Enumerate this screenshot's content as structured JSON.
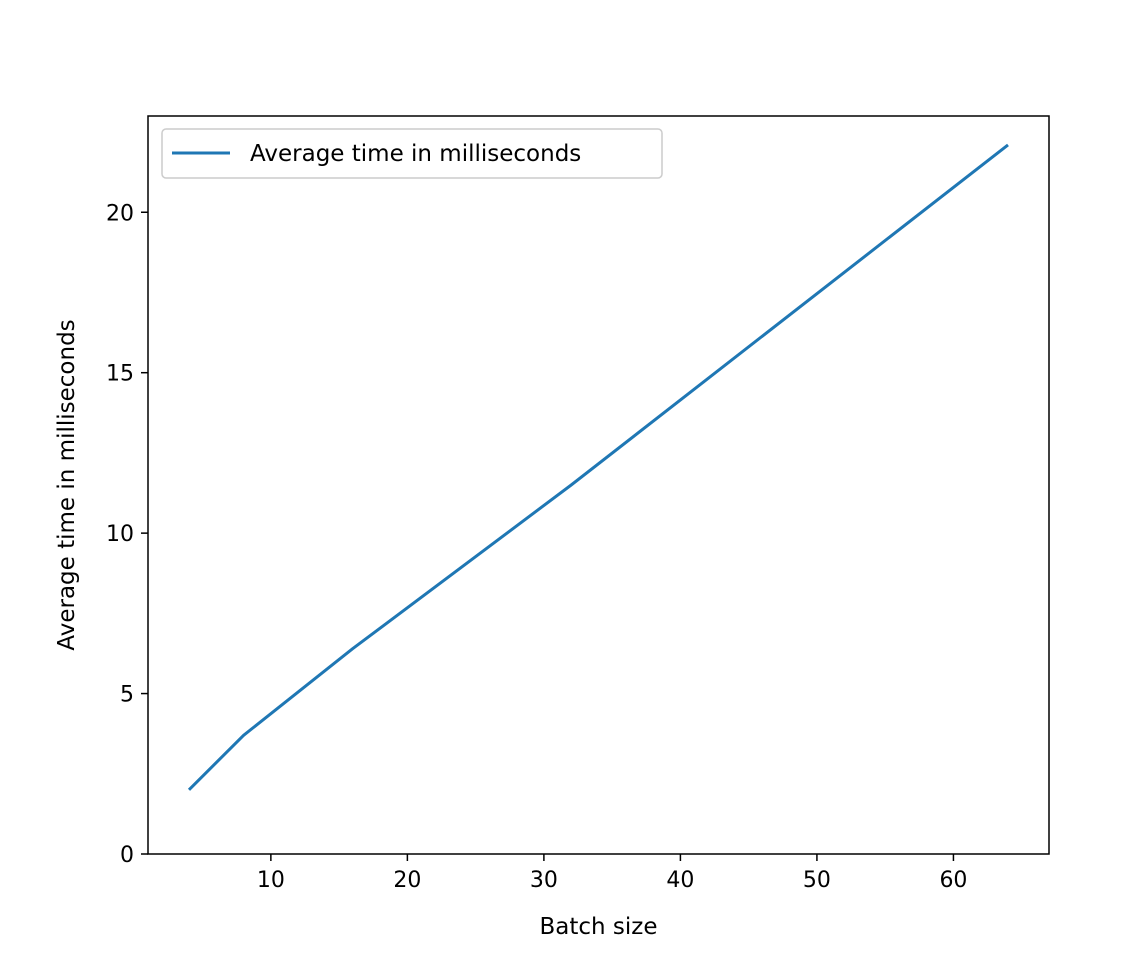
{
  "chart_data": {
    "type": "line",
    "xlabel": "Batch size",
    "ylabel": "Average time in milliseconds",
    "xlim": [
      1,
      67
    ],
    "ylim": [
      0,
      23
    ],
    "xticks": [
      10,
      20,
      30,
      40,
      50,
      60
    ],
    "yticks": [
      0,
      5,
      10,
      15,
      20
    ],
    "grid": false,
    "legend_placement": "upper-left",
    "series": [
      {
        "name": "Average time in milliseconds",
        "color": "#1f77b4",
        "x": [
          4,
          8,
          16,
          32,
          64
        ],
        "y": [
          2.0,
          3.7,
          6.4,
          11.5,
          22.1
        ]
      }
    ]
  }
}
